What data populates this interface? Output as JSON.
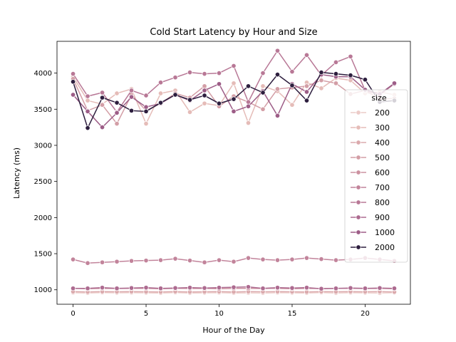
{
  "chart_data": {
    "type": "line",
    "title": "Cold Start Latency by Hour and Size",
    "xlabel": "Hour of the Day",
    "ylabel": "Latency (ms)",
    "xlim": [
      -1.1,
      23.1
    ],
    "ylim": [
      800,
      4440
    ],
    "xticks": [
      0,
      5,
      10,
      15,
      20
    ],
    "yticks": [
      1000,
      1500,
      2000,
      2500,
      3000,
      3500,
      4000
    ],
    "legend_title": "size",
    "legend_position": "right",
    "grid": false,
    "x": [
      0,
      1,
      2,
      3,
      4,
      5,
      6,
      7,
      8,
      9,
      10,
      11,
      12,
      13,
      14,
      15,
      16,
      17,
      18,
      19,
      20,
      21,
      22
    ],
    "series": [
      {
        "name": "200",
        "color": "#eccbc8",
        "values": [
          960,
          955,
          962,
          958,
          960,
          958,
          955,
          962,
          955,
          958,
          960,
          956,
          958,
          955,
          960,
          958,
          955,
          962,
          955,
          960,
          958,
          955,
          960
        ]
      },
      {
        "name": "300",
        "color": "#e5bcb8",
        "values": [
          3950,
          3620,
          3570,
          3720,
          3780,
          3300,
          3720,
          3760,
          3460,
          3580,
          3550,
          3860,
          3310,
          3820,
          3750,
          3560,
          3870,
          3790,
          3930,
          3900,
          3720,
          3740,
          3700
        ]
      },
      {
        "name": "400",
        "color": "#dbaaad",
        "values": [
          975,
          970,
          975,
          972,
          975,
          972,
          970,
          975,
          970,
          972,
          975,
          970,
          975,
          972,
          975,
          972,
          970,
          975,
          972,
          975,
          972,
          975,
          970
        ]
      },
      {
        "name": "500",
        "color": "#d39ea6",
        "values": [
          3920,
          3480,
          3560,
          3300,
          3700,
          3480,
          3580,
          3720,
          3660,
          3820,
          3540,
          3680,
          3600,
          3500,
          3780,
          3800,
          3820,
          3900,
          3860,
          3710,
          3760,
          3640,
          3650
        ]
      },
      {
        "name": "600",
        "color": "#cc92a0",
        "values": [
          1020,
          1015,
          1020,
          1018,
          1020,
          1020,
          1015,
          1020,
          1018,
          1020,
          1015,
          1020,
          1020,
          1018,
          1020,
          1015,
          1020,
          1018,
          1020,
          1020,
          1018,
          1020,
          1015
        ]
      },
      {
        "name": "700",
        "color": "#c2849b",
        "values": [
          1420,
          1370,
          1380,
          1390,
          1400,
          1405,
          1410,
          1430,
          1405,
          1380,
          1410,
          1390,
          1440,
          1420,
          1410,
          1420,
          1440,
          1425,
          1410,
          1420,
          1440,
          1420,
          1400
        ]
      },
      {
        "name": "800",
        "color": "#b87896",
        "values": [
          3990,
          3680,
          3730,
          3460,
          3760,
          3690,
          3870,
          3940,
          4010,
          3990,
          4000,
          4100,
          3600,
          4000,
          4310,
          4020,
          4250,
          3970,
          4150,
          4230,
          3760,
          3700,
          3850
        ]
      },
      {
        "name": "900",
        "color": "#ad6b90",
        "values": [
          1020,
          1020,
          1030,
          1020,
          1025,
          1030,
          1020,
          1025,
          1030,
          1025,
          1030,
          1035,
          1040,
          1020,
          1030,
          1025,
          1030,
          1015,
          1020,
          1025,
          1020,
          1025,
          1020
        ]
      },
      {
        "name": "1000",
        "color": "#9d5d87",
        "values": [
          3700,
          3470,
          3250,
          3450,
          3670,
          3530,
          3580,
          3700,
          3620,
          3760,
          3850,
          3470,
          3540,
          3750,
          3410,
          3850,
          3740,
          3980,
          3950,
          3950,
          3770,
          3710,
          3860
        ]
      },
      {
        "name": "2000",
        "color": "#2d1e3e",
        "values": [
          3880,
          3240,
          3660,
          3590,
          3480,
          3470,
          3590,
          3700,
          3630,
          3690,
          3580,
          3640,
          3820,
          3730,
          3980,
          3830,
          3620,
          4010,
          3990,
          3970,
          3910,
          3600,
          3620
        ]
      }
    ]
  }
}
